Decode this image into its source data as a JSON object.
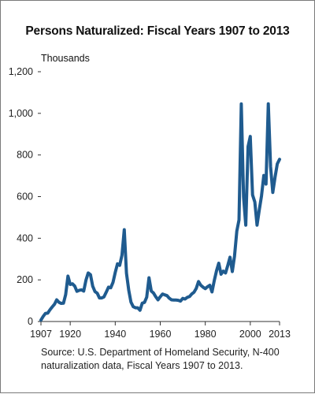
{
  "chart_data": {
    "type": "line",
    "title": "Persons Naturalized: Fiscal Years 1907 to 2013",
    "ylabel": "Thousands",
    "xlabel": "",
    "xlim": [
      1907,
      2013
    ],
    "ylim": [
      0,
      1200
    ],
    "x_ticks": [
      "1907",
      "1920",
      "1940",
      "1960",
      "1980",
      "2000",
      "2013"
    ],
    "y_ticks": [
      "0",
      "200",
      "400",
      "600",
      "800",
      "1,000",
      "1,200"
    ],
    "grid": false,
    "line_color": "#1f5b8f",
    "series": [
      {
        "x": [
          1907,
          1908,
          1909,
          1910,
          1911,
          1912,
          1913,
          1914,
          1915,
          1916,
          1917,
          1918,
          1919,
          1920,
          1921,
          1922,
          1923,
          1924,
          1925,
          1926,
          1927,
          1928,
          1929,
          1930,
          1931,
          1932,
          1933,
          1934,
          1935,
          1936,
          1937,
          1938,
          1939,
          1940,
          1941,
          1942,
          1943,
          1944,
          1945,
          1946,
          1947,
          1948,
          1949,
          1950,
          1951,
          1952,
          1953,
          1954,
          1955,
          1956,
          1957,
          1958,
          1959,
          1960,
          1961,
          1962,
          1963,
          1964,
          1965,
          1966,
          1967,
          1968,
          1969,
          1970,
          1971,
          1972,
          1973,
          1974,
          1975,
          1976,
          1977,
          1978,
          1979,
          1980,
          1981,
          1982,
          1983,
          1984,
          1985,
          1986,
          1987,
          1988,
          1989,
          1990,
          1991,
          1992,
          1993,
          1994,
          1995,
          1996,
          1997,
          1998,
          1999,
          2000,
          2001,
          2002,
          2003,
          2004,
          2005,
          2006,
          2007,
          2008,
          2009,
          2010,
          2011,
          2012,
          2013
        ],
        "values": [
          7,
          25,
          39,
          40,
          56,
          70,
          83,
          104,
          92,
          87,
          88,
          130,
          218,
          178,
          181,
          170,
          145,
          150,
          152,
          146,
          199,
          233,
          225,
          170,
          144,
          136,
          113,
          113,
          118,
          141,
          165,
          162,
          188,
          235,
          277,
          270,
          319,
          441,
          232,
          150,
          93,
          71,
          66,
          66,
          54,
          88,
          92,
          117,
          210,
          146,
          137,
          119,
          104,
          119,
          132,
          128,
          124,
          112,
          104,
          103,
          103,
          102,
          98,
          111,
          108,
          116,
          120,
          132,
          141,
          159,
          192,
          174,
          165,
          158,
          167,
          174,
          142,
          197,
          244,
          280,
          227,
          242,
          233,
          270,
          309,
          240,
          314,
          434,
          488,
          1045,
          598,
          463,
          840,
          889,
          608,
          574,
          463,
          537,
          604,
          702,
          660,
          1046,
          744,
          620,
          694,
          757,
          779
        ]
      }
    ]
  },
  "source_note": "Source: U.S. Department of Homeland Security, N-400 naturalization data, Fiscal Years 1907 to 2013."
}
